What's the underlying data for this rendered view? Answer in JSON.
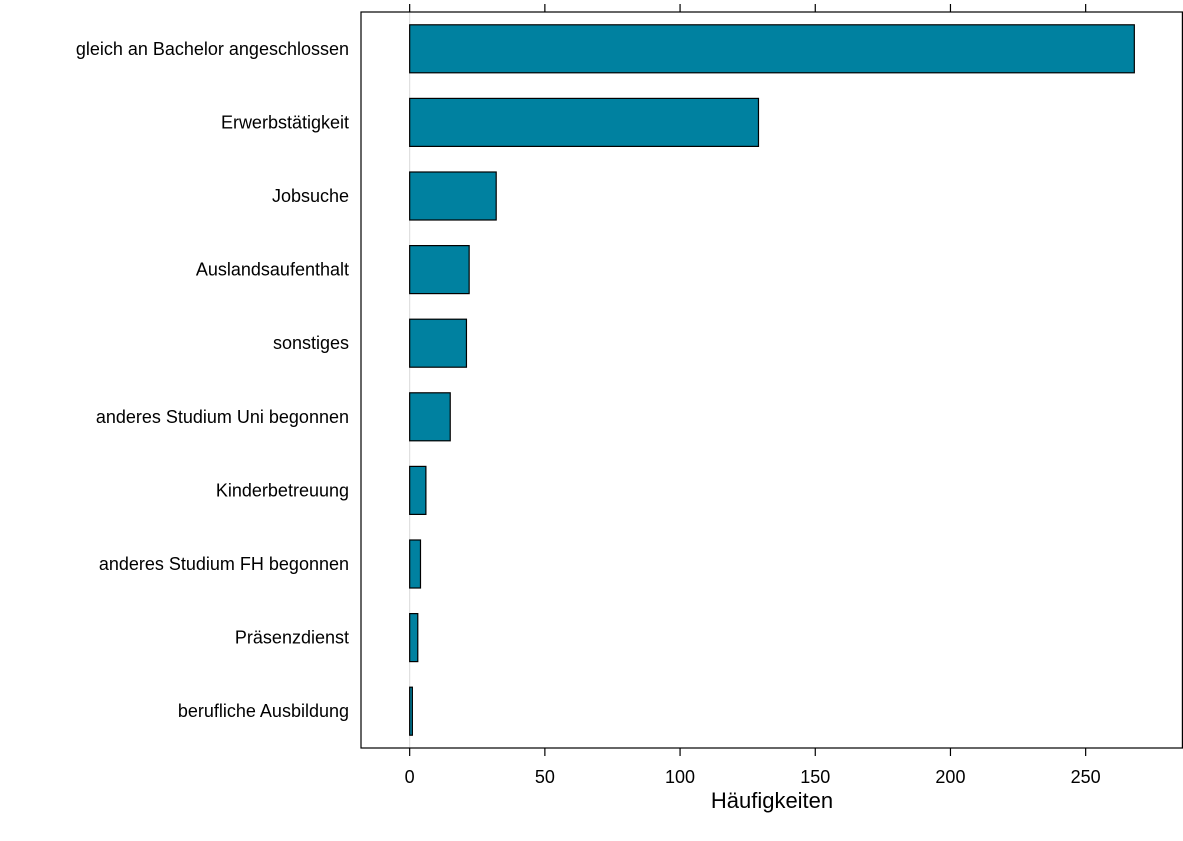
{
  "chart_data": {
    "type": "bar",
    "orientation": "horizontal",
    "title": "",
    "xlabel": "Häufigkeiten",
    "ylabel": "",
    "xlim": [
      -18,
      286
    ],
    "xticks": [
      0,
      50,
      100,
      150,
      200,
      250
    ],
    "grid": false,
    "colors": {
      "bar_fill": "#0081a0",
      "bar_stroke": "#000000",
      "zero_line": "#d9d9d9"
    },
    "categories": [
      "gleich an Bachelor angeschlossen",
      "Erwerbstätigkeit",
      "Jobsuche",
      "Auslandsaufenthalt",
      "sonstiges",
      "anderes Studium Uni begonnen",
      "Kinderbetreuung",
      "anderes Studium FH begonnen",
      "Präsenzdienst",
      "berufliche Ausbildung"
    ],
    "values": [
      268,
      129,
      32,
      22,
      21,
      15,
      6,
      4,
      3,
      1
    ]
  }
}
